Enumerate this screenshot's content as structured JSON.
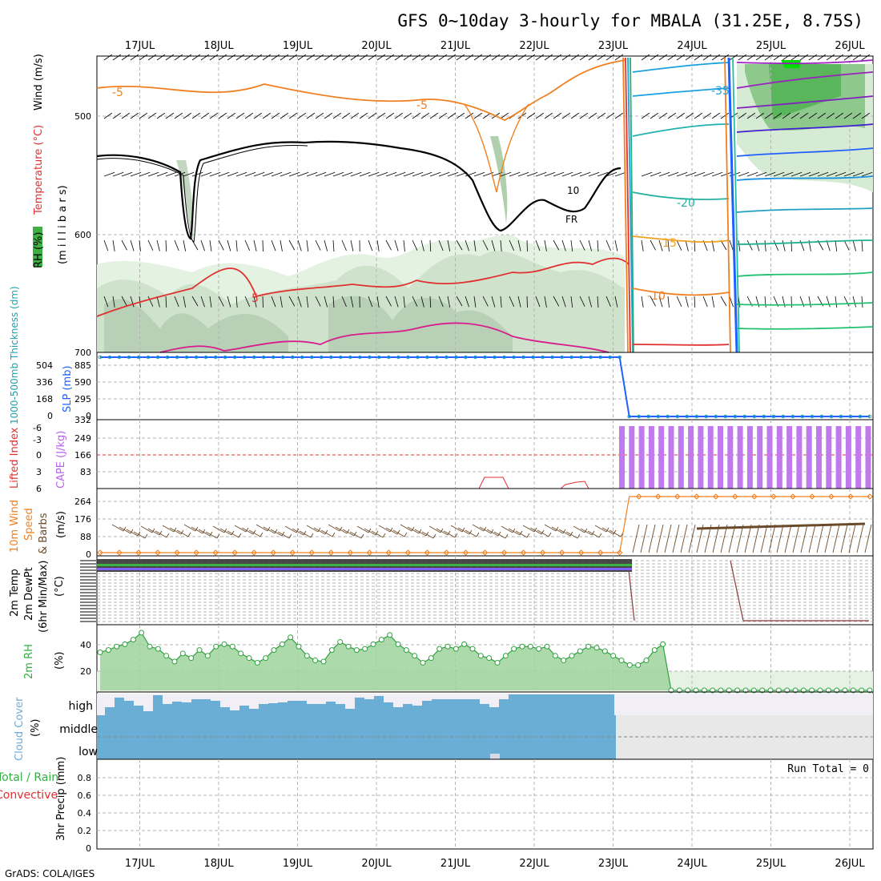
{
  "title": "GFS 0~10day 3-hourly for MBALA (31.25E, 8.75S)",
  "footer": "GrADS: COLA/IGES",
  "dates": [
    "17JUL",
    "18JUL",
    "19JUL",
    "20JUL",
    "21JUL",
    "22JUL",
    "23JUL",
    "24JUL",
    "25JUL",
    "26JUL"
  ],
  "colors": {
    "teal": "#1aa0b0",
    "blue": "#2060ff",
    "purple": "#b860f0",
    "red": "#e03030",
    "orange": "#f08020",
    "green": "#30b040",
    "skyblue": "#6aaed6",
    "brown": "#6b4a2a"
  },
  "panels": {
    "upper": {
      "ylabel_rh": "RH (%)",
      "ylabel_temp": "Temperature (°C)",
      "ylabel_wind": "Wind (m/s)",
      "ylabel_p": "(m i l l i b a r s)",
      "ticks": [
        "500",
        "600",
        "700"
      ],
      "contour_labels": [
        "-5",
        "-5",
        "-35",
        "-20",
        "-15",
        "-10",
        "10",
        "5",
        "FR"
      ]
    },
    "slp": {
      "ylabel_thick": "1000-500mb Thickness (dm)",
      "ylabel_slp": "SLP (mb)",
      "left_ticks": [
        "504",
        "336",
        "168",
        "0"
      ],
      "right_ticks": [
        "885",
        "590",
        "295",
        "0"
      ]
    },
    "cape": {
      "ylabel_li": "Lifted Index",
      "ylabel_cape": "CAPE (J/kg)",
      "left_ticks": [
        "-6",
        "-3",
        "0",
        "3",
        "6"
      ],
      "right_ticks": [
        "332",
        "249",
        "166",
        "83"
      ]
    },
    "wind10": {
      "ylabel_wind": "10m Wind",
      "ylabel_speed": "Speed",
      "ylabel_barbs": "& Barbs",
      "ylabel_unit": "(m/s)",
      "ticks": [
        "264",
        "176",
        "88",
        "0"
      ]
    },
    "temp2m": {
      "ylabel_temp": "2m Temp",
      "ylabel_dew": "2m DewPt",
      "ylabel_minmax": "(6hr Min/Max)",
      "ylabel_unit": "(°C)"
    },
    "rh2m": {
      "ylabel": "2m RH",
      "ylabel_unit": "(%)",
      "ticks": [
        "40",
        "20"
      ]
    },
    "cloud": {
      "ylabel": "Cloud Cover",
      "ylabel_unit": "(%)",
      "levels": [
        "high",
        "middle",
        "low"
      ]
    },
    "precip": {
      "ylabel_total": "Total / Rain",
      "ylabel_conv": "Convective",
      "ylabel_amount": "3hr Precip (mm)",
      "ticks": [
        "0.8",
        "0.6",
        "0.4",
        "0.2",
        "0"
      ],
      "run_total": "Run Total = 0"
    }
  },
  "chart_data": [
    {
      "type": "line",
      "title": "SLP and 1000-500mb Thickness",
      "x": [
        "17JUL",
        "18JUL",
        "19JUL",
        "20JUL",
        "21JUL",
        "22JUL",
        "23JUL",
        "24JUL",
        "25JUL",
        "26JUL"
      ],
      "series": [
        {
          "name": "SLP (mb)",
          "values": [
            885,
            885,
            885,
            885,
            885,
            885,
            885,
            0,
            0,
            0
          ]
        }
      ],
      "ylim": [
        0,
        885
      ]
    },
    {
      "type": "bar",
      "title": "CAPE (J/kg)",
      "note_values": "CAPE ~315 J/kg from 23JUL onward; near 0 before",
      "ylim": [
        0,
        332
      ]
    },
    {
      "type": "line",
      "title": "10m Wind Speed (m/s)",
      "x": [
        "17JUL",
        "18JUL",
        "19JUL",
        "20JUL",
        "21JUL",
        "22JUL",
        "23JUL",
        "24JUL",
        "25JUL",
        "26JUL"
      ],
      "series": [
        {
          "name": "Speed",
          "values": [
            0,
            0,
            0,
            0,
            0,
            0,
            0,
            264,
            264,
            264
          ]
        }
      ],
      "ylim": [
        0,
        264
      ]
    },
    {
      "type": "area",
      "title": "2m RH (%)",
      "series": [
        {
          "name": "2m RH",
          "values": [
            33,
            35,
            38,
            40,
            44,
            50,
            38,
            36,
            30,
            25,
            32,
            28,
            35,
            30,
            38,
            40,
            38,
            32,
            28,
            24,
            28,
            35,
            40,
            46,
            38,
            30,
            26,
            25,
            35,
            42,
            38,
            35,
            36,
            40,
            44,
            48,
            40,
            35,
            30,
            24,
            28,
            36,
            38,
            36,
            40,
            36,
            30,
            28,
            24,
            30,
            36,
            38,
            38,
            36,
            38,
            30,
            26,
            30,
            34,
            38,
            37,
            34,
            30,
            26,
            22,
            22,
            26,
            35,
            40,
            0,
            0,
            0,
            0,
            0,
            0,
            0,
            0,
            0,
            0,
            0,
            0,
            0,
            0,
            0,
            0,
            0,
            0,
            0,
            0,
            0,
            0,
            0,
            0,
            0
          ]
        }
      ],
      "ylim": [
        0,
        50
      ]
    },
    {
      "type": "bar",
      "title": "3hr Precip (mm)",
      "values_note": "All zero",
      "ylim": [
        0,
        0.9
      ]
    }
  ]
}
